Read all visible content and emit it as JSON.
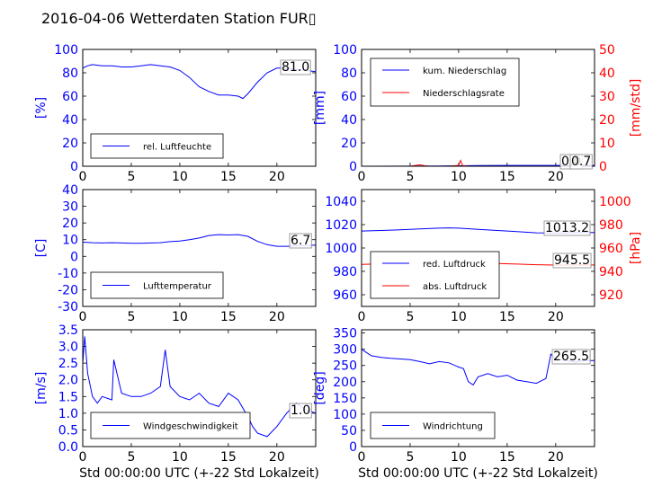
{
  "title": "2016-04-06 Wetterdaten Station FUR▯",
  "colors": {
    "primary": "#0000ff",
    "secondary": "#ff0000",
    "axis": "#000000"
  },
  "chart_data": [
    {
      "id": "humidity",
      "type": "line",
      "x_range": [
        0,
        24
      ],
      "x_ticks": [
        0,
        5,
        10,
        15,
        20
      ],
      "y_ticks": [
        0,
        20,
        40,
        60,
        80,
        100
      ],
      "ylim": [
        0,
        100
      ],
      "ylabel": "[%]",
      "xlabel": "",
      "legend_position": "lower-left",
      "annotation": "81.0",
      "series": [
        {
          "name": "rel. Luftfeuchte",
          "axis": "left",
          "color": "#0000ff",
          "x": [
            0,
            0.5,
            1,
            2,
            3,
            4,
            5,
            6,
            7,
            8,
            9,
            10,
            11,
            12,
            13,
            14,
            15,
            16,
            16.5,
            17,
            18,
            19,
            20,
            21,
            22,
            23,
            24
          ],
          "y": [
            84,
            86,
            87,
            86,
            86,
            85,
            85,
            86,
            87,
            86,
            85,
            82,
            76,
            68,
            64,
            61,
            61,
            60,
            58,
            62,
            72,
            80,
            84,
            84,
            83,
            82,
            81
          ]
        }
      ]
    },
    {
      "id": "precip",
      "type": "line",
      "x_range": [
        0,
        24
      ],
      "x_ticks": [
        0,
        5,
        10,
        15,
        20
      ],
      "y_ticks": [
        0,
        20,
        40,
        60,
        80,
        100
      ],
      "y2_ticks": [
        0,
        10,
        20,
        30,
        40,
        50
      ],
      "ylim": [
        0,
        100
      ],
      "y2lim": [
        0,
        50
      ],
      "ylabel": "[mm]",
      "y2label": "[mm/std]",
      "xlabel": "",
      "legend_position": "top-left",
      "annotation": "0.0",
      "annotation2": "0.7",
      "series": [
        {
          "name": "kum. Niederschlag",
          "axis": "left",
          "color": "#0000ff",
          "x": [
            0,
            5,
            8,
            10,
            12,
            15,
            20,
            24
          ],
          "y": [
            0,
            0.1,
            0.2,
            0.4,
            0.6,
            0.7,
            0.7,
            0.7
          ]
        },
        {
          "name": "Niederschlagsrate",
          "axis": "right",
          "color": "#ff0000",
          "x": [
            0,
            5,
            6,
            6.5,
            7,
            9,
            10,
            10.2,
            10.4,
            11,
            15,
            20,
            24
          ],
          "y": [
            0,
            0,
            0.6,
            0.2,
            0,
            0,
            0.4,
            2.5,
            0.3,
            0,
            0,
            0,
            0
          ]
        }
      ]
    },
    {
      "id": "temperature",
      "type": "line",
      "x_range": [
        0,
        24
      ],
      "x_ticks": [
        0,
        5,
        10,
        15,
        20
      ],
      "y_ticks": [
        -30,
        -20,
        -10,
        0,
        10,
        20,
        30,
        40
      ],
      "ylim": [
        -30,
        40
      ],
      "ylabel": "[C]",
      "xlabel": "",
      "legend_position": "lower-left",
      "annotation": "6.7",
      "series": [
        {
          "name": "Lufttemperatur",
          "axis": "left",
          "color": "#0000ff",
          "x": [
            0,
            1,
            2,
            3,
            4,
            5,
            6,
            7,
            8,
            9,
            10,
            11,
            12,
            13,
            14,
            15,
            16,
            17,
            18,
            19,
            20,
            21,
            22,
            23,
            24
          ],
          "y": [
            8.5,
            8.2,
            8,
            8.2,
            8,
            7.8,
            7.8,
            8,
            8.2,
            8.8,
            9.2,
            10,
            11,
            12.5,
            13,
            12.8,
            13,
            12,
            9,
            7,
            6,
            6,
            6.3,
            6.5,
            6.7
          ]
        }
      ]
    },
    {
      "id": "pressure",
      "type": "line",
      "x_range": [
        0,
        24
      ],
      "x_ticks": [
        0,
        5,
        10,
        15,
        20
      ],
      "y_ticks": [
        960,
        980,
        1000,
        1020,
        1040
      ],
      "y2_ticks": [
        920,
        940,
        960,
        980,
        1000
      ],
      "ylim": [
        950,
        1050
      ],
      "y2lim": [
        910,
        1010
      ],
      "ylabel": "",
      "y2label": "[hPa]",
      "xlabel": "",
      "legend_position": "lower-left",
      "annotation": "1013.2",
      "annotation2": "945.5",
      "series": [
        {
          "name": "red. Luftdruck",
          "axis": "left",
          "color": "#0000ff",
          "x": [
            0,
            2,
            4,
            6,
            8,
            9,
            10,
            12,
            14,
            16,
            18,
            20,
            22,
            24
          ],
          "y": [
            1014.5,
            1015,
            1015.5,
            1016.3,
            1017,
            1017.2,
            1017,
            1016,
            1015,
            1014,
            1013,
            1012.8,
            1013.2,
            1013.2
          ]
        },
        {
          "name": "abs. Luftdruck",
          "axis": "right",
          "color": "#ff0000",
          "x": [
            0,
            2,
            4,
            6,
            8,
            9,
            10,
            12,
            14,
            16,
            18,
            20,
            22,
            24
          ],
          "y": [
            946,
            946.5,
            947,
            947.5,
            948.3,
            948.6,
            948.3,
            947.5,
            946.8,
            946.2,
            945.7,
            945.4,
            945.5,
            945.5
          ]
        }
      ]
    },
    {
      "id": "windspeed",
      "type": "line",
      "x_range": [
        0,
        24
      ],
      "x_ticks": [
        0,
        5,
        10,
        15,
        20
      ],
      "y_ticks": [
        0.0,
        0.5,
        1.0,
        1.5,
        2.0,
        2.5,
        3.0,
        3.5
      ],
      "ylim": [
        0,
        3.5
      ],
      "ylabel": "[m/s]",
      "xlabel": "Std 00:00:00 UTC (+-22 Std Lokalzeit)",
      "legend_position": "lower-left",
      "annotation": "1.0",
      "series": [
        {
          "name": "Windgeschwindigkeit",
          "axis": "left",
          "color": "#0000ff",
          "x": [
            0,
            0.2,
            0.5,
            1,
            1.5,
            2,
            3,
            3.2,
            4,
            5,
            6,
            7,
            8,
            8.5,
            9,
            10,
            11,
            12,
            13,
            14,
            15,
            16,
            17,
            17.5,
            18,
            19,
            20,
            21,
            22,
            23,
            24
          ],
          "y": [
            2.5,
            3.3,
            2.2,
            1.5,
            1.3,
            1.5,
            1.4,
            2.6,
            1.6,
            1.5,
            1.5,
            1.6,
            1.8,
            2.9,
            1.8,
            1.5,
            1.4,
            1.6,
            1.3,
            1.2,
            1.6,
            1.4,
            0.9,
            0.6,
            0.4,
            0.3,
            0.6,
            1.0,
            1.3,
            1.1,
            1.0
          ]
        }
      ]
    },
    {
      "id": "winddir",
      "type": "line",
      "x_range": [
        0,
        24
      ],
      "x_ticks": [
        0,
        5,
        10,
        15,
        20
      ],
      "y_ticks": [
        0,
        50,
        100,
        150,
        200,
        250,
        300,
        350
      ],
      "ylim": [
        0,
        360
      ],
      "ylabel": "[deg]",
      "xlabel": "Std 00:00:00 UTC (+-22 Std Lokalzeit)",
      "legend_position": "lower-left",
      "annotation": "265.5",
      "series": [
        {
          "name": "Windrichtung",
          "axis": "left",
          "color": "#0000ff",
          "x": [
            0,
            0.5,
            1,
            2,
            3,
            4,
            5,
            6,
            7,
            8,
            9,
            10,
            10.5,
            11,
            11.5,
            12,
            13,
            14,
            15,
            16,
            17,
            18,
            19,
            19.5,
            20,
            21,
            22,
            23,
            24
          ],
          "y": [
            300,
            290,
            280,
            275,
            272,
            270,
            268,
            262,
            255,
            262,
            258,
            245,
            240,
            200,
            190,
            215,
            225,
            215,
            220,
            205,
            200,
            195,
            210,
            285,
            270,
            265,
            260,
            265,
            265
          ]
        }
      ]
    }
  ]
}
